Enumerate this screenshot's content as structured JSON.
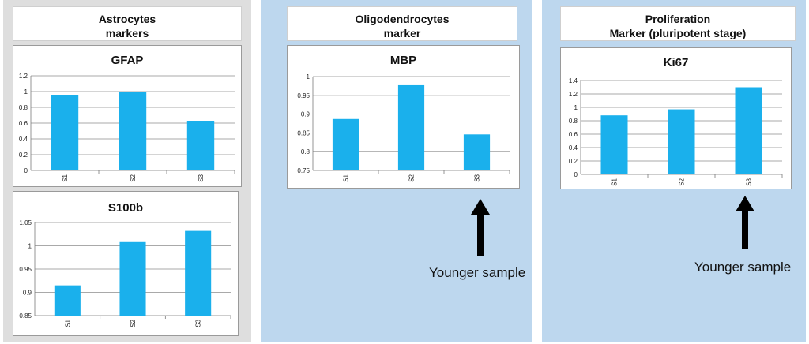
{
  "colors": {
    "panel_left": "#dedede",
    "panel_blue": "#bdd7ee",
    "bar": "#1ab0ec",
    "grid": "#8c8c8c"
  },
  "panels": [
    {
      "title_line1": "Astrocytes",
      "title_line2": "markers"
    },
    {
      "title_line1": "Oligodendrocytes",
      "title_line2": "marker"
    },
    {
      "title_line1": "Proliferation",
      "title_line2": "Marker (pluripotent stage)"
    }
  ],
  "annotations": {
    "mbp_note": "Younger sample",
    "ki67_note": "Younger sample",
    "arrow_icon": "up-arrow-icon"
  },
  "chart_data": [
    {
      "type": "bar",
      "title": "GFAP",
      "categories": [
        "S1",
        "S2",
        "S3"
      ],
      "values": [
        0.95,
        1.0,
        0.63
      ],
      "ylim": [
        0,
        1.2
      ],
      "yticks": [
        "0",
        "0.2",
        "0.4",
        "0.6",
        "0.8",
        "1",
        "1.2"
      ],
      "grid": true
    },
    {
      "type": "bar",
      "title": "S100b",
      "categories": [
        "S1",
        "S2",
        "S3"
      ],
      "values": [
        0.915,
        1.008,
        1.032
      ],
      "ylim": [
        0.85,
        1.05
      ],
      "yticks": [
        "0.85",
        "0.9",
        "0.95",
        "1",
        "1.05"
      ],
      "grid": true
    },
    {
      "type": "bar",
      "title": "MBP",
      "categories": [
        "S1",
        "S2",
        "S3"
      ],
      "values": [
        0.887,
        0.977,
        0.846
      ],
      "ylim": [
        0.75,
        1
      ],
      "yticks": [
        "0.75",
        "0.8",
        "0.85",
        "0.9",
        "0.95",
        "1"
      ],
      "grid": true
    },
    {
      "type": "bar",
      "title": "Ki67",
      "categories": [
        "S1",
        "S2",
        "S3"
      ],
      "values": [
        0.88,
        0.97,
        1.3
      ],
      "ylim": [
        0,
        1.4
      ],
      "yticks": [
        "0",
        "0.2",
        "0.4",
        "0.6",
        "0.8",
        "1",
        "1.2",
        "1.4"
      ],
      "grid": true
    }
  ]
}
